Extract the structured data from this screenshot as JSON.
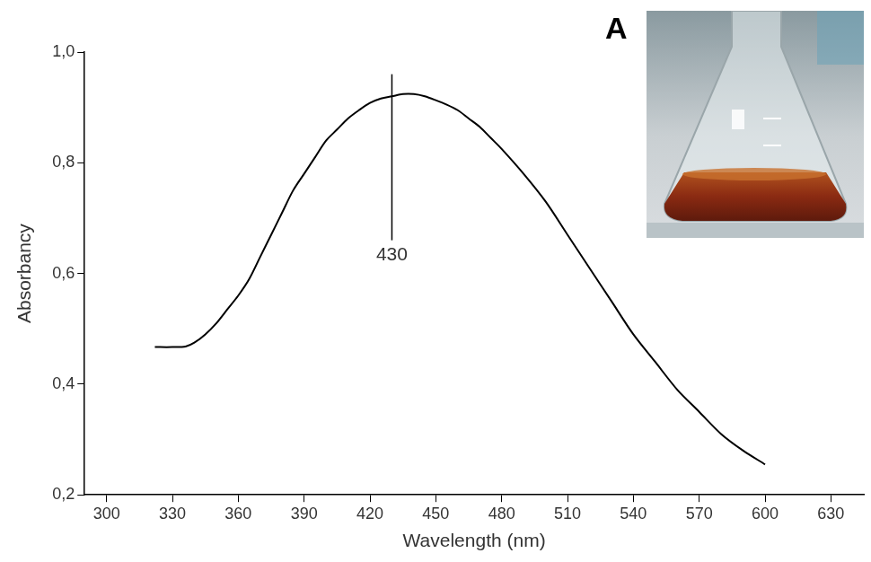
{
  "chart_data": {
    "type": "line",
    "x_label": "Wavelength (nm)",
    "y_label": "Absorbancy",
    "x": [
      322,
      330,
      336,
      340,
      345,
      350,
      355,
      360,
      365,
      370,
      375,
      380,
      385,
      390,
      395,
      400,
      405,
      410,
      415,
      420,
      425,
      430,
      435,
      440,
      445,
      450,
      455,
      460,
      465,
      470,
      475,
      480,
      490,
      500,
      510,
      520,
      530,
      540,
      550,
      560,
      570,
      580,
      590,
      600
    ],
    "values": [
      0.467,
      0.467,
      0.468,
      0.475,
      0.49,
      0.51,
      0.535,
      0.56,
      0.59,
      0.63,
      0.67,
      0.71,
      0.75,
      0.78,
      0.81,
      0.84,
      0.86,
      0.88,
      0.895,
      0.908,
      0.916,
      0.92,
      0.924,
      0.924,
      0.92,
      0.913,
      0.905,
      0.895,
      0.88,
      0.865,
      0.845,
      0.825,
      0.78,
      0.73,
      0.67,
      0.61,
      0.55,
      0.49,
      0.44,
      0.39,
      0.35,
      0.31,
      0.28,
      0.255
    ],
    "color": "#000000",
    "xlim": [
      290,
      645
    ],
    "xticks": [
      300,
      330,
      360,
      390,
      420,
      450,
      480,
      510,
      540,
      570,
      600,
      630
    ],
    "ylim": [
      0.2,
      1.0
    ],
    "yticks": [
      {
        "value": 0.2,
        "label": "0,2"
      },
      {
        "value": 0.4,
        "label": "0,4"
      },
      {
        "value": 0.6,
        "label": "0,6"
      },
      {
        "value": 0.8,
        "label": "0,8"
      },
      {
        "value": 1.0,
        "label": "1,0"
      }
    ],
    "grid": false,
    "annotations": [
      {
        "type": "line",
        "x": 430,
        "y": [
          0.66,
          0.96
        ],
        "text": "430"
      },
      {
        "type": "panel_label",
        "text": "A"
      }
    ]
  }
}
